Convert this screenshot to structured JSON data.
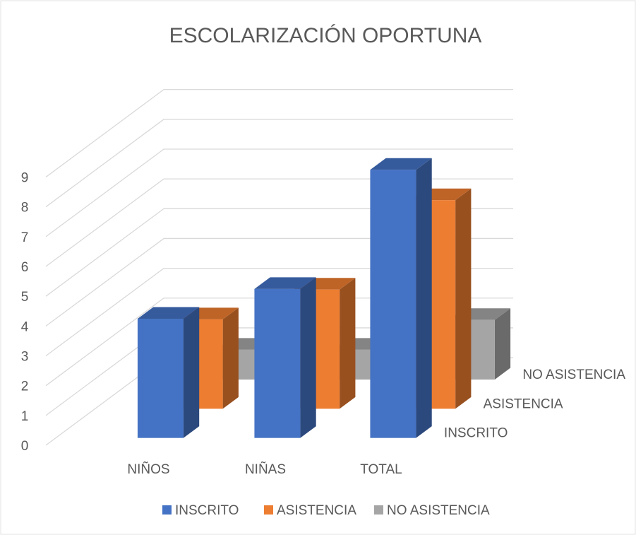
{
  "chart_data": {
    "type": "bar",
    "title": "ESCOLARIZACIÓN OPORTUNA",
    "categories": [
      "NIÑOS",
      "NIÑAS",
      "TOTAL"
    ],
    "series": [
      {
        "name": "INSCRITO",
        "color": "#4472c4",
        "values": [
          4,
          5,
          9
        ]
      },
      {
        "name": "ASISTENCIA",
        "color": "#ed7d31",
        "values": [
          3,
          4,
          7
        ]
      },
      {
        "name": "NO ASISTENCIA",
        "color": "#a5a5a5",
        "values": [
          1,
          1,
          2
        ]
      }
    ],
    "ylim": [
      0,
      9
    ],
    "yticks": [
      0,
      1,
      2,
      3,
      4,
      5,
      6,
      7,
      8,
      9
    ],
    "grid": true,
    "legend": "bottom"
  }
}
